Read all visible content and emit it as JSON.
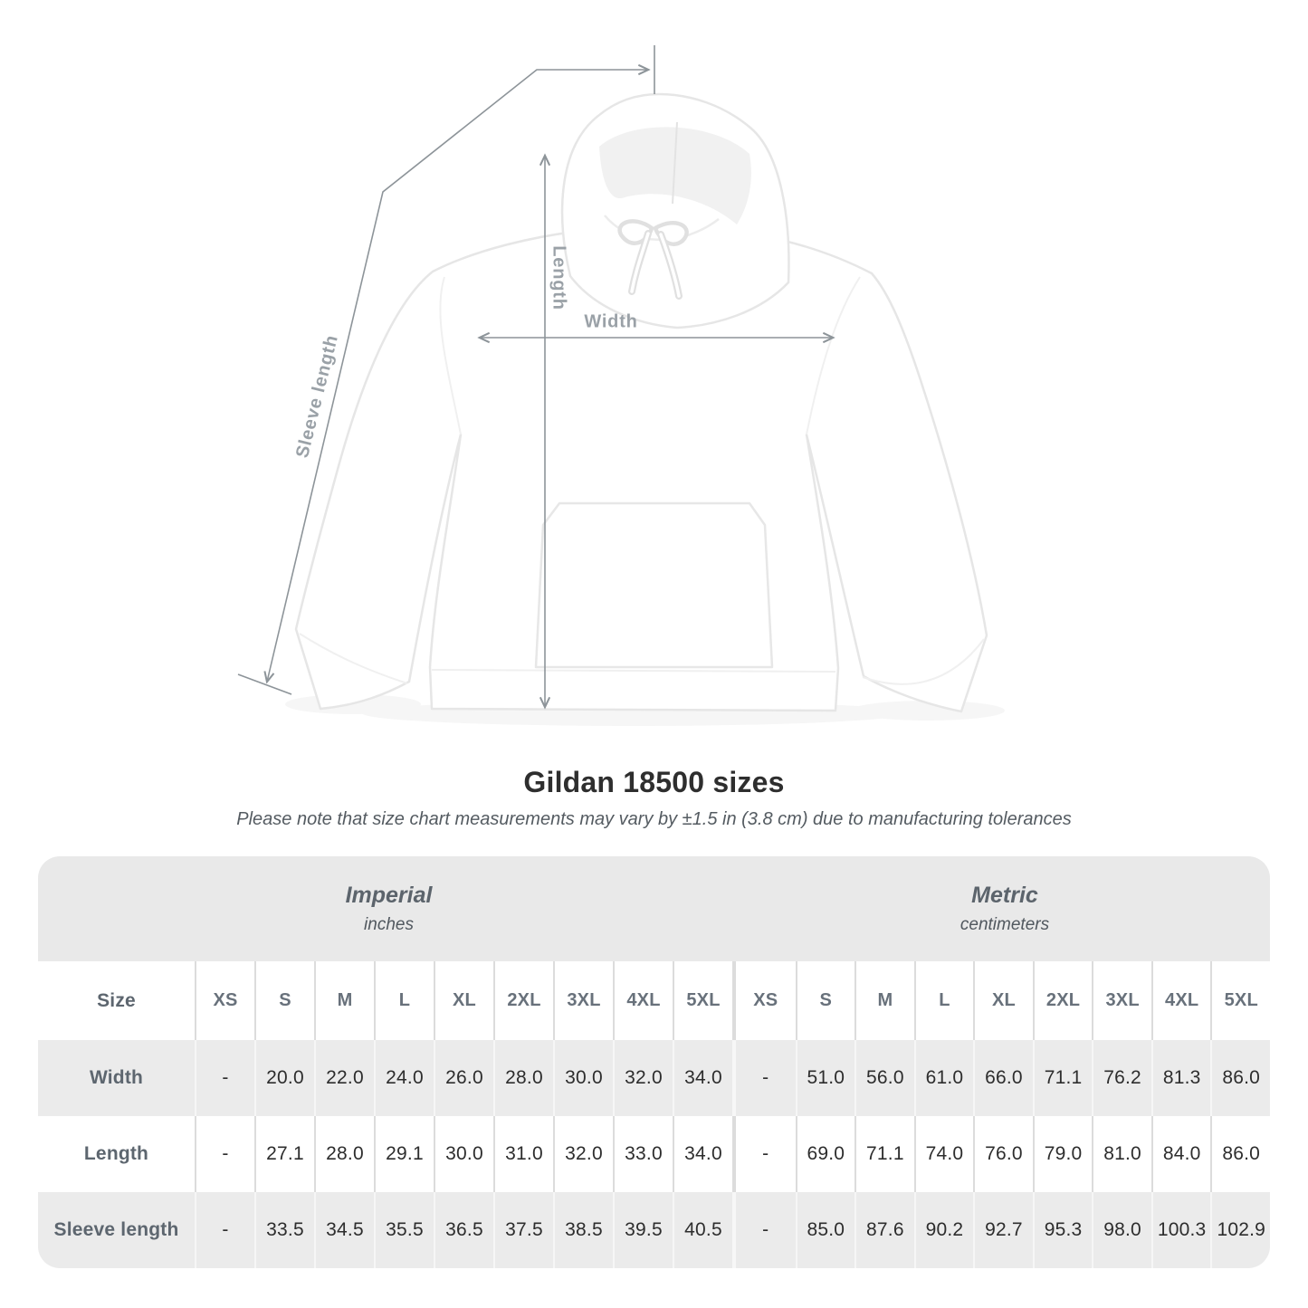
{
  "figure": {
    "title": "Gildan 18500 sizes",
    "note": "Please note that size chart measurements may vary by ±1.5 in (3.8 cm) due to manufacturing tolerances"
  },
  "diagram": {
    "garment": "white pullover hoodie, front view",
    "measurement_labels": {
      "length": "Length",
      "width": "Width",
      "sleeve_length": "Sleeve length"
    }
  },
  "chart_data": {
    "type": "table",
    "title": "Gildan 18500 sizes",
    "note": "Please note that size chart measurements may vary by ±1.5 in (3.8 cm) due to manufacturing tolerances",
    "size_header": "Size",
    "sizes": [
      "XS",
      "S",
      "M",
      "L",
      "XL",
      "2XL",
      "3XL",
      "4XL",
      "5XL"
    ],
    "groups": [
      {
        "label": "Imperial",
        "units": "inches"
      },
      {
        "label": "Metric",
        "units": "centimeters"
      }
    ],
    "measurements": [
      {
        "label": "Width",
        "imperial": [
          "-",
          "20.0",
          "22.0",
          "24.0",
          "26.0",
          "28.0",
          "30.0",
          "32.0",
          "34.0"
        ],
        "metric": [
          "-",
          "51.0",
          "56.0",
          "61.0",
          "66.0",
          "71.1",
          "76.2",
          "81.3",
          "86.0"
        ]
      },
      {
        "label": "Length",
        "imperial": [
          "-",
          "27.1",
          "28.0",
          "29.1",
          "30.0",
          "31.0",
          "32.0",
          "33.0",
          "34.0"
        ],
        "metric": [
          "-",
          "69.0",
          "71.1",
          "74.0",
          "76.0",
          "79.0",
          "81.0",
          "84.0",
          "86.0"
        ]
      },
      {
        "label": "Sleeve length",
        "imperial": [
          "-",
          "33.5",
          "34.5",
          "35.5",
          "36.5",
          "37.5",
          "38.5",
          "39.5",
          "40.5"
        ],
        "metric": [
          "-",
          "85.0",
          "87.6",
          "90.2",
          "92.7",
          "95.3",
          "98.0",
          "100.3",
          "102.9"
        ]
      }
    ]
  },
  "colors": {
    "page_background": "#ffffff",
    "table_band": "#e9e9e9",
    "row_shaded": "#ebebeb",
    "row_white": "#ffffff",
    "column_separator": "#dcdcdc",
    "header_text": "#68717b",
    "value_text": "#2d2d2d",
    "dimension_line": "#8d9499",
    "measurement_label_text": "#9aa1a7"
  }
}
